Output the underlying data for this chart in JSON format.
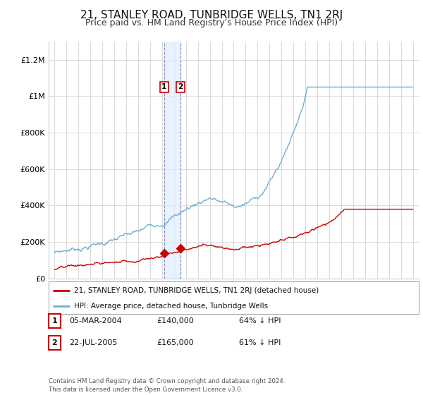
{
  "title": "21, STANLEY ROAD, TUNBRIDGE WELLS, TN1 2RJ",
  "subtitle": "Price paid vs. HM Land Registry's House Price Index (HPI)",
  "title_fontsize": 11,
  "subtitle_fontsize": 9,
  "background_color": "#ffffff",
  "plot_bg_color": "#ffffff",
  "grid_color": "#cccccc",
  "hpi_color": "#6baed6",
  "price_color": "#cc0000",
  "ylim": [
    0,
    1300000
  ],
  "yticks": [
    0,
    200000,
    400000,
    600000,
    800000,
    1000000,
    1200000
  ],
  "ytick_labels": [
    "£0",
    "£200K",
    "£400K",
    "£600K",
    "£800K",
    "£1M",
    "£1.2M"
  ],
  "legend_label_price": "21, STANLEY ROAD, TUNBRIDGE WELLS, TN1 2RJ (detached house)",
  "legend_label_hpi": "HPI: Average price, detached house, Tunbridge Wells",
  "transactions": [
    {
      "date": 2004.17,
      "price": 140000,
      "label": "1"
    },
    {
      "date": 2005.55,
      "price": 165000,
      "label": "2"
    }
  ],
  "table_rows": [
    {
      "num": "1",
      "date": "05-MAR-2004",
      "price": "£140,000",
      "pct": "64% ↓ HPI"
    },
    {
      "num": "2",
      "date": "22-JUL-2005",
      "price": "£165,000",
      "pct": "61% ↓ HPI"
    }
  ],
  "footer": "Contains HM Land Registry data © Crown copyright and database right 2024.\nThis data is licensed under the Open Government Licence v3.0.",
  "marker_color": "#cc0000",
  "marker_size": 6,
  "vline_color": "#8888bb",
  "shade_color": "#ddeeff",
  "label_box_color": "#cc0000"
}
